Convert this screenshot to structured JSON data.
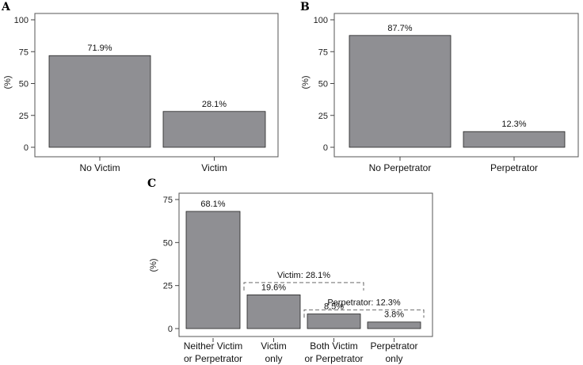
{
  "chart_data": [
    {
      "panel": "A",
      "type": "bar",
      "ylabel": "(%)",
      "ylim": [
        0,
        100
      ],
      "yticks": [
        0,
        25,
        50,
        75,
        100
      ],
      "categories": [
        "No Victim",
        "Victim"
      ],
      "values": [
        71.9,
        28.1
      ],
      "value_labels": [
        "71.9%",
        "28.1%"
      ]
    },
    {
      "panel": "B",
      "type": "bar",
      "ylabel": "(%)",
      "ylim": [
        0,
        100
      ],
      "yticks": [
        0,
        25,
        50,
        75,
        100
      ],
      "categories": [
        "No Perpetrator",
        "Perpetrator"
      ],
      "values": [
        87.7,
        12.3
      ],
      "value_labels": [
        "87.7%",
        "12.3%"
      ]
    },
    {
      "panel": "C",
      "type": "bar",
      "ylabel": "(%)",
      "ylim": [
        0,
        75
      ],
      "yticks": [
        0,
        25,
        50,
        75
      ],
      "categories": [
        [
          "Neither Victim",
          "or Perpetrator"
        ],
        [
          "Victim",
          "only"
        ],
        [
          "Both Victim",
          "or Perpetrator"
        ],
        [
          "Perpetrator",
          "only"
        ]
      ],
      "values": [
        68.1,
        19.6,
        8.5,
        3.8
      ],
      "value_labels": [
        "68.1%",
        "19.6%",
        "8.5%",
        "3.8%"
      ],
      "annotations": [
        {
          "label": "Victim: 28.1%",
          "value": 28.1,
          "from": 1,
          "to": 2
        },
        {
          "label": "Perpetrator: 12.3%",
          "value": 12.3,
          "from": 2,
          "to": 3
        }
      ]
    }
  ]
}
